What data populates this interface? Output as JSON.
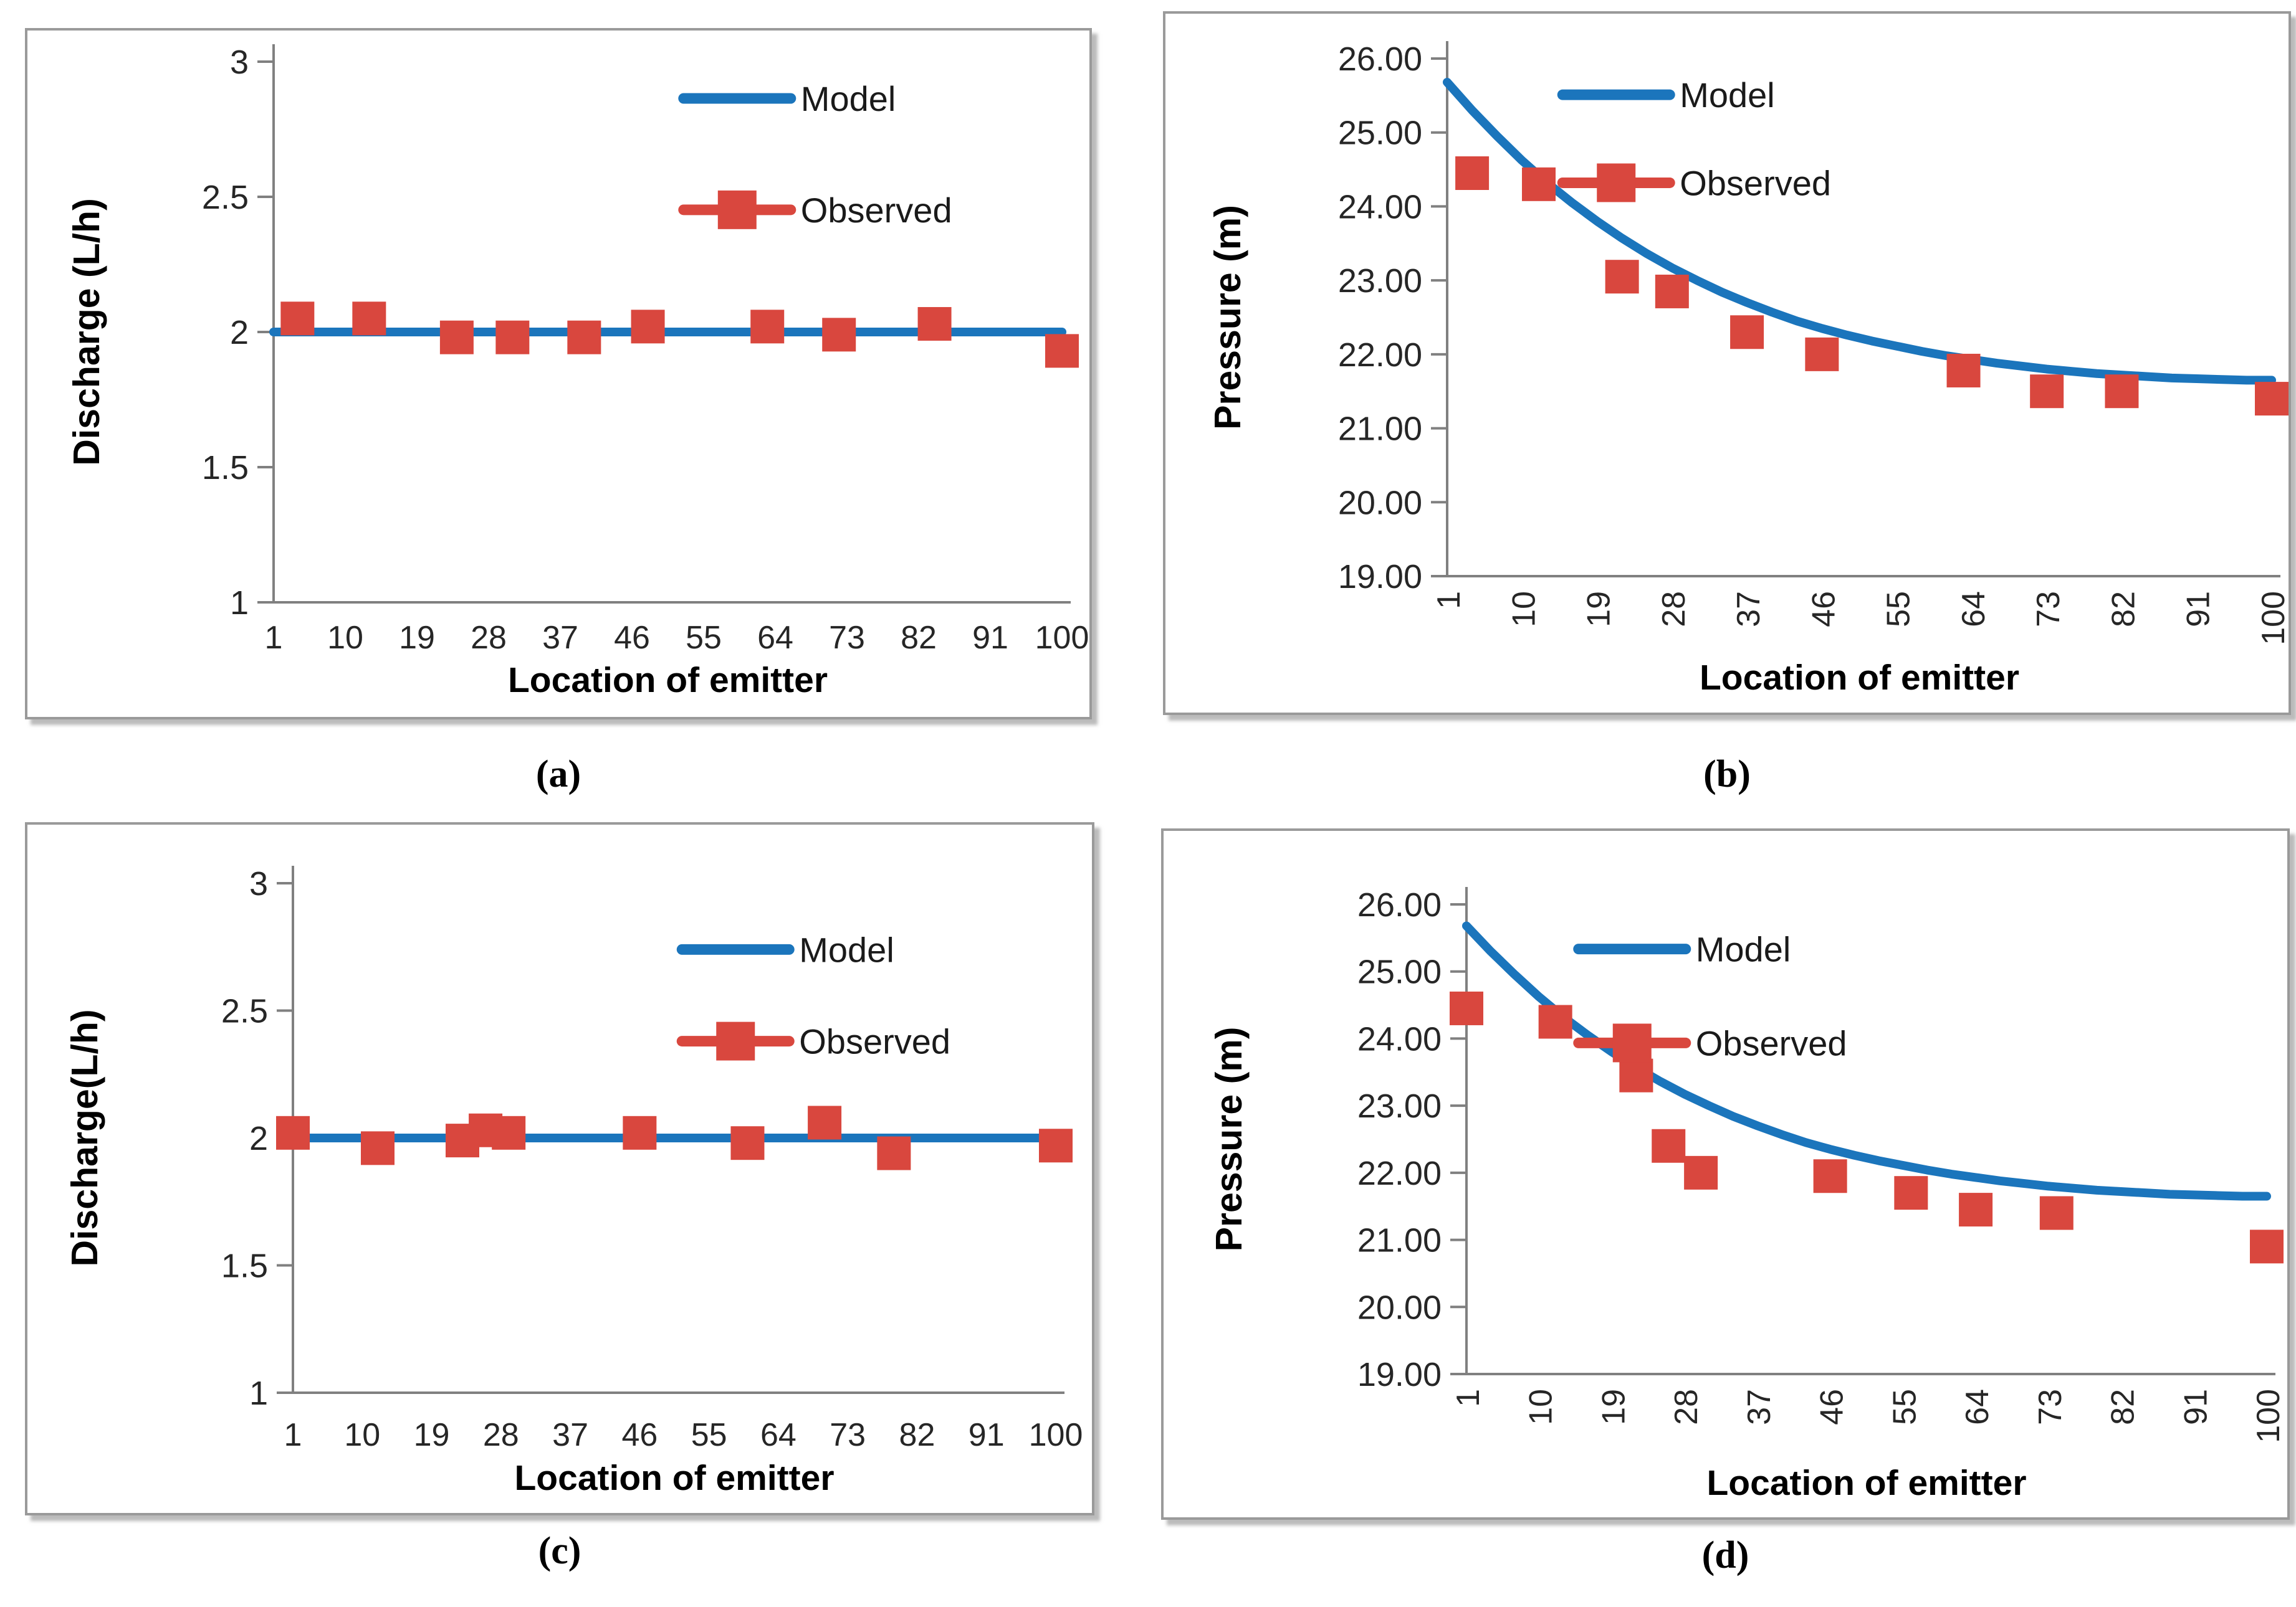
{
  "figure": {
    "model_color": "#1b75bc",
    "observed_color": "#d9473e",
    "axis_color": "#808080",
    "text_color": "#262626",
    "panel_border_color": "#9a9a9a"
  },
  "captions": {
    "a": "(a)",
    "b": "(b)",
    "c": "(c)",
    "d": "(d)"
  },
  "chart_data": [
    {
      "id": "a",
      "type": "line",
      "title": "",
      "xlabel": "Location of emitter",
      "ylabel": "Discharge (L/h)",
      "xlim": [
        1,
        100
      ],
      "ylim": [
        1,
        3
      ],
      "x_ticks": [
        1,
        10,
        19,
        28,
        37,
        46,
        55,
        64,
        73,
        82,
        91,
        100
      ],
      "x_tick_orientation": "horizontal",
      "y_ticks": [
        3,
        2.5,
        2,
        1.5,
        1
      ],
      "y_tick_labels": [
        "3",
        "2.5",
        "2",
        "1.5",
        "1"
      ],
      "grid": false,
      "legend_position": "upper-right-inside",
      "series": [
        {
          "name": "Model",
          "kind": "line",
          "x": [
            1,
            100
          ],
          "y": [
            2,
            2
          ]
        },
        {
          "name": "Observed",
          "kind": "scatter",
          "x": [
            4,
            13,
            24,
            31,
            40,
            48,
            63,
            72,
            84,
            100
          ],
          "y": [
            2.05,
            2.05,
            1.98,
            1.98,
            1.98,
            2.02,
            2.02,
            1.99,
            2.03,
            1.93
          ]
        }
      ],
      "caption": "(a)"
    },
    {
      "id": "b",
      "type": "line",
      "title": "",
      "xlabel": "Location of emitter",
      "ylabel": "Pressure (m)",
      "xlim": [
        1,
        100
      ],
      "ylim": [
        19,
        26
      ],
      "x_ticks": [
        1,
        10,
        19,
        28,
        37,
        46,
        55,
        64,
        73,
        82,
        91,
        100
      ],
      "x_tick_orientation": "vertical",
      "y_ticks": [
        26,
        25,
        24,
        23,
        22,
        21,
        20,
        19
      ],
      "y_tick_labels": [
        "26.00",
        "25.00",
        "24.00",
        "23.00",
        "22.00",
        "21.00",
        "20.00",
        "19.00"
      ],
      "grid": false,
      "legend_position": "upper-right-inside",
      "series": [
        {
          "name": "Model",
          "kind": "line",
          "x": [
            1,
            4,
            7,
            10,
            13,
            16,
            19,
            22,
            25,
            28,
            31,
            34,
            37,
            40,
            43,
            46,
            49,
            52,
            55,
            58,
            61,
            64,
            67,
            70,
            73,
            76,
            79,
            82,
            85,
            88,
            91,
            94,
            97,
            100
          ],
          "y": [
            25.68,
            25.3,
            24.95,
            24.62,
            24.32,
            24.05,
            23.8,
            23.57,
            23.36,
            23.17,
            23.0,
            22.84,
            22.7,
            22.57,
            22.45,
            22.35,
            22.26,
            22.18,
            22.11,
            22.04,
            21.98,
            21.93,
            21.88,
            21.84,
            21.8,
            21.77,
            21.74,
            21.72,
            21.7,
            21.68,
            21.67,
            21.66,
            21.65,
            21.65
          ]
        },
        {
          "name": "Observed",
          "kind": "scatter",
          "x": [
            4,
            12,
            22,
            28,
            37,
            46,
            63,
            73,
            82,
            100
          ],
          "y": [
            24.45,
            24.3,
            23.05,
            22.85,
            22.3,
            22.0,
            21.78,
            21.5,
            21.5,
            21.4
          ]
        }
      ],
      "caption": "(b)"
    },
    {
      "id": "c",
      "type": "line",
      "title": "",
      "xlabel": "Location of emitter",
      "ylabel": "Discharge(L/h)",
      "xlim": [
        1,
        100
      ],
      "ylim": [
        1,
        3
      ],
      "x_ticks": [
        1,
        10,
        19,
        28,
        37,
        46,
        55,
        64,
        73,
        82,
        91,
        100
      ],
      "x_tick_orientation": "horizontal",
      "y_ticks": [
        3,
        2.5,
        2,
        1.5,
        1
      ],
      "y_tick_labels": [
        "3",
        "2.5",
        "2",
        "1.5",
        "1"
      ],
      "grid": false,
      "legend_position": "upper-right-inside",
      "series": [
        {
          "name": "Model",
          "kind": "line",
          "x": [
            1,
            100
          ],
          "y": [
            2,
            2
          ]
        },
        {
          "name": "Observed",
          "kind": "scatter",
          "x": [
            1,
            12,
            23,
            26,
            29,
            46,
            60,
            70,
            79,
            100
          ],
          "y": [
            2.02,
            1.96,
            1.99,
            2.03,
            2.02,
            2.02,
            1.98,
            2.06,
            1.94,
            1.97
          ]
        }
      ],
      "caption": "(c)"
    },
    {
      "id": "d",
      "type": "line",
      "title": "",
      "xlabel": "Location of emitter",
      "ylabel": "Pressure  (m)",
      "xlim": [
        1,
        100
      ],
      "ylim": [
        19,
        26
      ],
      "x_ticks": [
        1,
        10,
        19,
        28,
        37,
        46,
        55,
        64,
        73,
        82,
        91,
        100
      ],
      "x_tick_orientation": "vertical",
      "y_ticks": [
        26,
        25,
        24,
        23,
        22,
        21,
        20,
        19
      ],
      "y_tick_labels": [
        "26.00",
        "25.00",
        "24.00",
        "23.00",
        "22.00",
        "21.00",
        "20.00",
        "19.00"
      ],
      "grid": false,
      "legend_position": "upper-right-inside",
      "series": [
        {
          "name": "Model",
          "kind": "line",
          "x": [
            1,
            4,
            7,
            10,
            13,
            16,
            19,
            22,
            25,
            28,
            31,
            34,
            37,
            40,
            43,
            46,
            49,
            52,
            55,
            58,
            61,
            64,
            67,
            70,
            73,
            76,
            79,
            82,
            85,
            88,
            91,
            94,
            97,
            100
          ],
          "y": [
            25.68,
            25.3,
            24.95,
            24.62,
            24.32,
            24.05,
            23.8,
            23.57,
            23.36,
            23.17,
            23.0,
            22.84,
            22.7,
            22.57,
            22.45,
            22.35,
            22.26,
            22.18,
            22.11,
            22.04,
            21.98,
            21.93,
            21.88,
            21.84,
            21.8,
            21.77,
            21.74,
            21.72,
            21.7,
            21.68,
            21.67,
            21.66,
            21.65,
            21.65
          ]
        },
        {
          "name": "Observed",
          "kind": "scatter",
          "x": [
            1,
            12,
            22,
            26,
            30,
            46,
            56,
            64,
            74,
            100
          ],
          "y": [
            24.45,
            24.25,
            23.45,
            22.4,
            22.0,
            21.95,
            21.7,
            21.45,
            21.4,
            20.9
          ]
        }
      ],
      "caption": "(d)"
    }
  ]
}
